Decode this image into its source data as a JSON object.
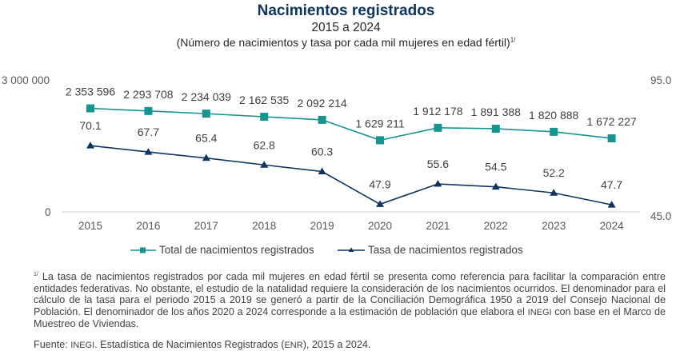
{
  "chart_data": {
    "type": "line",
    "title": "Nacimientos registrados",
    "subtitle": "2015 a 2024",
    "subtitle2": "(Número de nacimientos y tasa por cada mil mujeres en edad fértil)",
    "subtitle2_note": "1/",
    "x": [
      "2015",
      "2016",
      "2017",
      "2018",
      "2019",
      "2020",
      "2021",
      "2022",
      "2023",
      "2024"
    ],
    "series": [
      {
        "name": "Total de nacimientos registrados",
        "axis": "left",
        "color": "#16948f",
        "marker": "square",
        "values": [
          2353596,
          2293708,
          2234039,
          2162535,
          2092214,
          1629211,
          1912178,
          1891388,
          1820888,
          1672227
        ],
        "labels": [
          "2 353 596",
          "2 293 708",
          "2 234 039",
          "2 162 535",
          "2 092 214",
          "1 629 211",
          "1 912 178",
          "1 891 388",
          "1 820 888",
          "1 672 227"
        ]
      },
      {
        "name": "Tasa de nacimientos registrados",
        "axis": "right",
        "color": "#0d3560",
        "marker": "triangle",
        "values": [
          70.1,
          67.7,
          65.4,
          62.8,
          60.3,
          47.9,
          55.6,
          54.5,
          52.2,
          47.7
        ],
        "labels": [
          "70.1",
          "67.7",
          "65.4",
          "62.8",
          "60.3",
          "47.9",
          "55.6",
          "54.5",
          "52.2",
          "47.7"
        ]
      }
    ],
    "y_left": {
      "min": 0,
      "max": 3000000,
      "ticks": [
        "0",
        "3 000 000"
      ]
    },
    "y_right": {
      "min": 45.0,
      "max": 95.0,
      "ticks": [
        "45.0",
        "95.0"
      ]
    },
    "grid": false,
    "legend_position": "bottom"
  },
  "footnote": {
    "marker": "1/",
    "text_before_inegi": " La tasa de nacimientos registrados por cada mil mujeres en edad fértil se presenta como referencia para facilitar la comparación entre entidades federativas. No obstante, el estudio de la natalidad requiere la consideración de los nacimientos ocurridos. El denominador para el cálculo de la tasa para el periodo 2015 a 2019 se generó a partir de la Conciliación Demográfica 1950 a 2019 del Consejo Nacional de Población. El denominador de los años 2020 a 2024 corresponde a la estimación de población que elabora el ",
    "inegi": "INEGI",
    "text_after_inegi": " con base en el Marco de Muestreo de Viviendas."
  },
  "source": {
    "prefix": "Fuente: ",
    "inegi": "INEGI",
    "middle": ". Estadística de Nacimientos Registrados (",
    "enr": "ENR",
    "suffix": "), 2015 a 2024."
  }
}
